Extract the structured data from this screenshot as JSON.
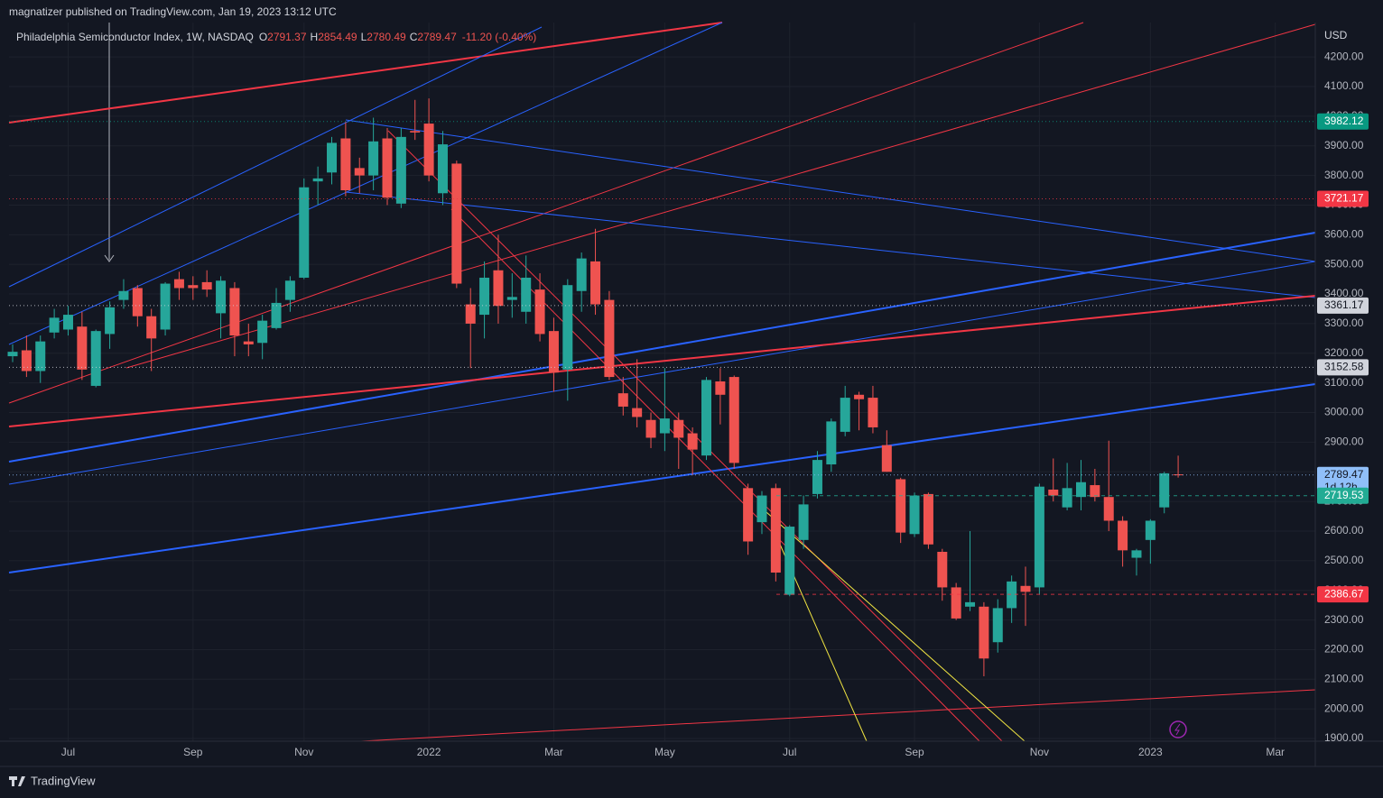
{
  "header": {
    "publisher": "magnatizer published on TradingView.com, Jan 19, 2023 13:12 UTC"
  },
  "footer": {
    "brand": "TradingView"
  },
  "chart_data": {
    "type": "candlestick",
    "legend": {
      "symbol": "Philadelphia Semiconductor Index, 1W, NASDAQ",
      "fields": [
        {
          "key": "O",
          "value": 2791.37
        },
        {
          "key": "H",
          "value": 2854.49
        },
        {
          "key": "L",
          "value": 2780.49
        },
        {
          "key": "C",
          "value": 2789.47
        }
      ],
      "change": {
        "value": -11.2,
        "label": "-11.20 (-0.40%)"
      }
    },
    "currency": "USD",
    "up_color": "#26a69a",
    "down_color": "#ef5350",
    "grid": true,
    "categories": [
      null,
      null,
      null,
      null,
      "Jul",
      null,
      null,
      null,
      null,
      null,
      null,
      null,
      null,
      "Sep",
      null,
      null,
      null,
      null,
      null,
      null,
      null,
      "Nov",
      null,
      null,
      null,
      null,
      null,
      null,
      null,
      null,
      "2022",
      null,
      null,
      null,
      null,
      null,
      null,
      null,
      null,
      "Mar",
      null,
      null,
      null,
      null,
      null,
      null,
      null,
      "May",
      null,
      null,
      null,
      null,
      null,
      null,
      null,
      null,
      "Jul",
      null,
      null,
      null,
      null,
      null,
      null,
      null,
      null,
      "Sep",
      null,
      null,
      null,
      null,
      null,
      null,
      null,
      null,
      "Nov",
      null,
      null,
      null,
      null,
      null,
      null,
      null,
      "2023",
      null,
      null,
      null,
      null,
      null,
      null,
      null,
      null,
      "Mar",
      null,
      null
    ],
    "open": [
      3190,
      3210,
      3140,
      3270,
      3280,
      3290,
      3090,
      3265,
      3380,
      3420,
      3325,
      3280,
      3450,
      3430,
      3440,
      3335,
      3420,
      3240,
      3235,
      3285,
      3380,
      3455,
      3780,
      3810,
      3925,
      3825,
      3800,
      3925,
      3705,
      3950,
      3975,
      3740,
      3840,
      3365,
      3330,
      3480,
      3380,
      3340,
      3415,
      3275,
      3145,
      3410,
      3510,
      3380,
      3065,
      3015,
      2975,
      2930,
      2975,
      2930,
      2855,
      3105,
      3120,
      2745,
      2630,
      2745,
      2385,
      2570,
      2725,
      2825,
      2935,
      3060,
      3050,
      2890,
      2775,
      2590,
      2725,
      2530,
      2410,
      2345,
      2345,
      2225,
      2340,
      2415,
      2410,
      2740,
      2680,
      2715,
      2755,
      2715,
      2635,
      2510,
      2570,
      2680,
      2791.37,
      null,
      null,
      null,
      null,
      null,
      null,
      null,
      null,
      null
    ],
    "high": [
      3230,
      3260,
      3260,
      3350,
      3360,
      3340,
      3280,
      3375,
      3450,
      3430,
      3350,
      3440,
      3475,
      3460,
      3480,
      3460,
      3440,
      3300,
      3330,
      3420,
      3460,
      3790,
      3830,
      3930,
      3980,
      3860,
      3995,
      3960,
      3960,
      4055,
      4060,
      3950,
      3850,
      3420,
      3510,
      3600,
      3470,
      3530,
      3470,
      3320,
      3450,
      3540,
      3620,
      3410,
      3120,
      3180,
      3000,
      3150,
      3000,
      2950,
      3120,
      3150,
      3125,
      2760,
      2735,
      2760,
      2620,
      2720,
      2870,
      2980,
      3090,
      3070,
      3090,
      2940,
      2780,
      2730,
      2730,
      2540,
      2425,
      2600,
      2360,
      2370,
      2450,
      2480,
      2760,
      2845,
      2830,
      2840,
      2810,
      2905,
      2650,
      2540,
      2640,
      2800,
      2854.49,
      null,
      null,
      null,
      null,
      null,
      null,
      null,
      null,
      null
    ],
    "low": [
      3170,
      3120,
      3100,
      3250,
      3260,
      3110,
      3085,
      3215,
      3350,
      3290,
      3140,
      3260,
      3380,
      3380,
      3390,
      3250,
      3190,
      3190,
      3180,
      3280,
      3340,
      3450,
      3700,
      3770,
      3730,
      3740,
      3750,
      3700,
      3690,
      3920,
      3780,
      3700,
      3420,
      3150,
      3250,
      3300,
      3320,
      3300,
      3240,
      3070,
      3040,
      3340,
      3330,
      3110,
      2990,
      2950,
      2880,
      2870,
      2810,
      2790,
      2840,
      2960,
      2810,
      2520,
      2590,
      2430,
      2380,
      2540,
      2710,
      2800,
      2920,
      2940,
      2930,
      2800,
      2560,
      2580,
      2540,
      2365,
      2300,
      2330,
      2110,
      2190,
      2290,
      2280,
      2385,
      2700,
      2670,
      2670,
      2700,
      2600,
      2480,
      2450,
      2490,
      2660,
      2780.49,
      null,
      null,
      null,
      null,
      null,
      null,
      null,
      null,
      null
    ],
    "close": [
      3205,
      3140,
      3240,
      3320,
      3330,
      3145,
      3275,
      3355,
      3410,
      3325,
      3250,
      3435,
      3420,
      3420,
      3415,
      3445,
      3260,
      3230,
      3310,
      3370,
      3445,
      3760,
      3790,
      3910,
      3750,
      3800,
      3915,
      3725,
      3930,
      3945,
      3800,
      3905,
      3435,
      3300,
      3455,
      3360,
      3390,
      3455,
      3265,
      3135,
      3430,
      3520,
      3365,
      3120,
      3020,
      2985,
      2915,
      2980,
      2915,
      2875,
      3110,
      3060,
      2830,
      2565,
      2720,
      2460,
      2615,
      2690,
      2840,
      2970,
      3050,
      3045,
      2950,
      2800,
      2595,
      2720,
      2555,
      2410,
      2305,
      2360,
      2170,
      2340,
      2430,
      2395,
      2750,
      2720,
      2745,
      2765,
      2715,
      2635,
      2535,
      2535,
      2635,
      2795,
      2789.47,
      null,
      null,
      null,
      null,
      null,
      null,
      null,
      null,
      null
    ],
    "ylim": [
      1891,
      4316
    ],
    "yticks": [
      {
        "value": 1900,
        "label": "1900.00"
      },
      {
        "value": 2000,
        "label": "2000.00"
      },
      {
        "value": 2100,
        "label": "2100.00"
      },
      {
        "value": 2200,
        "label": "2200.00"
      },
      {
        "value": 2300,
        "label": "2300.00"
      },
      {
        "value": 2400,
        "label": "2400.00"
      },
      {
        "value": 2500,
        "label": "2500.00"
      },
      {
        "value": 2600,
        "label": "2600.00"
      },
      {
        "value": 2700,
        "label": "2700.00"
      },
      {
        "value": 2800,
        "label": "2800.00"
      },
      {
        "value": 2900,
        "label": "2900.00"
      },
      {
        "value": 3000,
        "label": "3000.00"
      },
      {
        "value": 3100,
        "label": "3100.00"
      },
      {
        "value": 3200,
        "label": "3200.00"
      },
      {
        "value": 3300,
        "label": "3300.00"
      },
      {
        "value": 3400,
        "label": "3400.00"
      },
      {
        "value": 3500,
        "label": "3500.00"
      },
      {
        "value": 3600,
        "label": "3600.00"
      },
      {
        "value": 3700,
        "label": "3700.00"
      },
      {
        "value": 3800,
        "label": "3800.00"
      },
      {
        "value": 3900,
        "label": "3900.00"
      },
      {
        "value": 4000,
        "label": "4000.00"
      },
      {
        "value": 4100,
        "label": "4100.00"
      },
      {
        "value": 4200,
        "label": "4200.00"
      }
    ],
    "price_lines": [
      {
        "value": 3982.12,
        "color": "#089981",
        "text_color": "#ffffff",
        "style": "dotted"
      },
      {
        "value": 3721.17,
        "color": "#f23645",
        "text_color": "#ffffff",
        "style": "dotted"
      },
      {
        "value": 3361.17,
        "color": "#d1d4dc",
        "text_color": "#131722",
        "style": "dotted"
      },
      {
        "value": 3152.58,
        "color": "#d1d4dc",
        "text_color": "#131722",
        "style": "dotted"
      },
      {
        "value": 2789.47,
        "color": "#90bff9",
        "text_color": "#131722",
        "style": "dotted",
        "countdown": "1d 12h"
      },
      {
        "value": 2719.53,
        "color": "#22ab94",
        "text_color": "#ffffff",
        "style": "dashed"
      },
      {
        "value": 2386.67,
        "color": "#f23645",
        "text_color": "#ffffff",
        "style": "dashed"
      }
    ]
  }
}
